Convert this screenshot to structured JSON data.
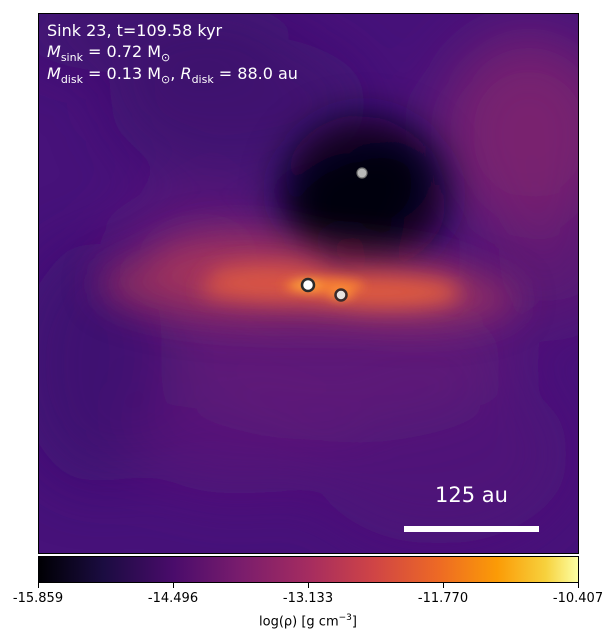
{
  "annotation": {
    "line1": "Sink 23, t=109.58 kyr",
    "m_sink_symbol": "M",
    "m_sink_sub": "sink",
    "m_sink_value": " = 0.72 M",
    "m_sink_unit_sub": "⊙",
    "m_disk_symbol": "M",
    "m_disk_sub": "disk",
    "m_disk_value": " = 0.13 M",
    "m_disk_unit_sub": "⊙",
    "r_disk_sep": ", ",
    "r_disk_symbol": "R",
    "r_disk_sub": "disk",
    "r_disk_value": " = 88.0 au"
  },
  "scale_bar": {
    "label": "125 au"
  },
  "colorbar": {
    "label_prefix": "log(ρ) [g cm",
    "label_exp": "−3",
    "label_suffix": "]",
    "ticks": [
      "-15.859",
      "-14.496",
      "-13.133",
      "-11.770",
      "-10.407"
    ],
    "colormap": "inferno-magma"
  },
  "colors": {
    "void": "#030208",
    "background": "#4b1478",
    "disk": "#f0603a",
    "disk_bright": "#ffa040"
  }
}
